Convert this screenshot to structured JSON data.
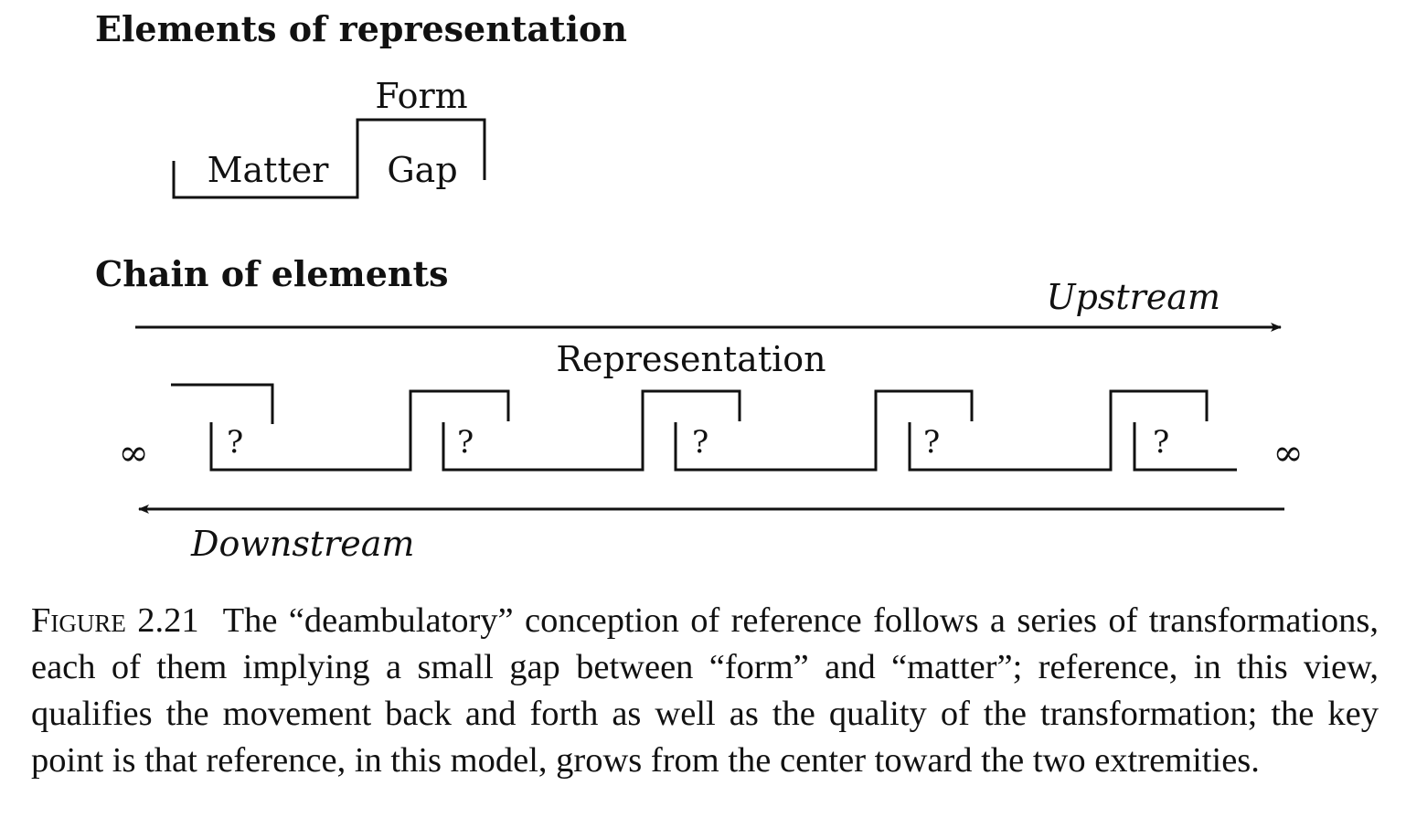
{
  "section_1": {
    "heading": "Elements of representation",
    "form_label": "Form",
    "matter_label": "Matter",
    "gap_label": "Gap"
  },
  "section_2": {
    "heading": "Chain of elements",
    "upstream_label": "Upstream",
    "downstream_label": "Downstream",
    "representation_label": "Representation",
    "gap_marker": "?",
    "infinity_left": "∞",
    "infinity_right": "∞"
  },
  "caption": {
    "figure_number": "Figure 2.21",
    "text": "The “deambulatory” conception of reference follows a series of transformations, each of them implying a small gap between “form” and “matter”; reference, in this view, qualifies the movement back and forth as well as the quality of the transformation; the key point is that reference, in this model, grows from the center toward the two extremities."
  }
}
